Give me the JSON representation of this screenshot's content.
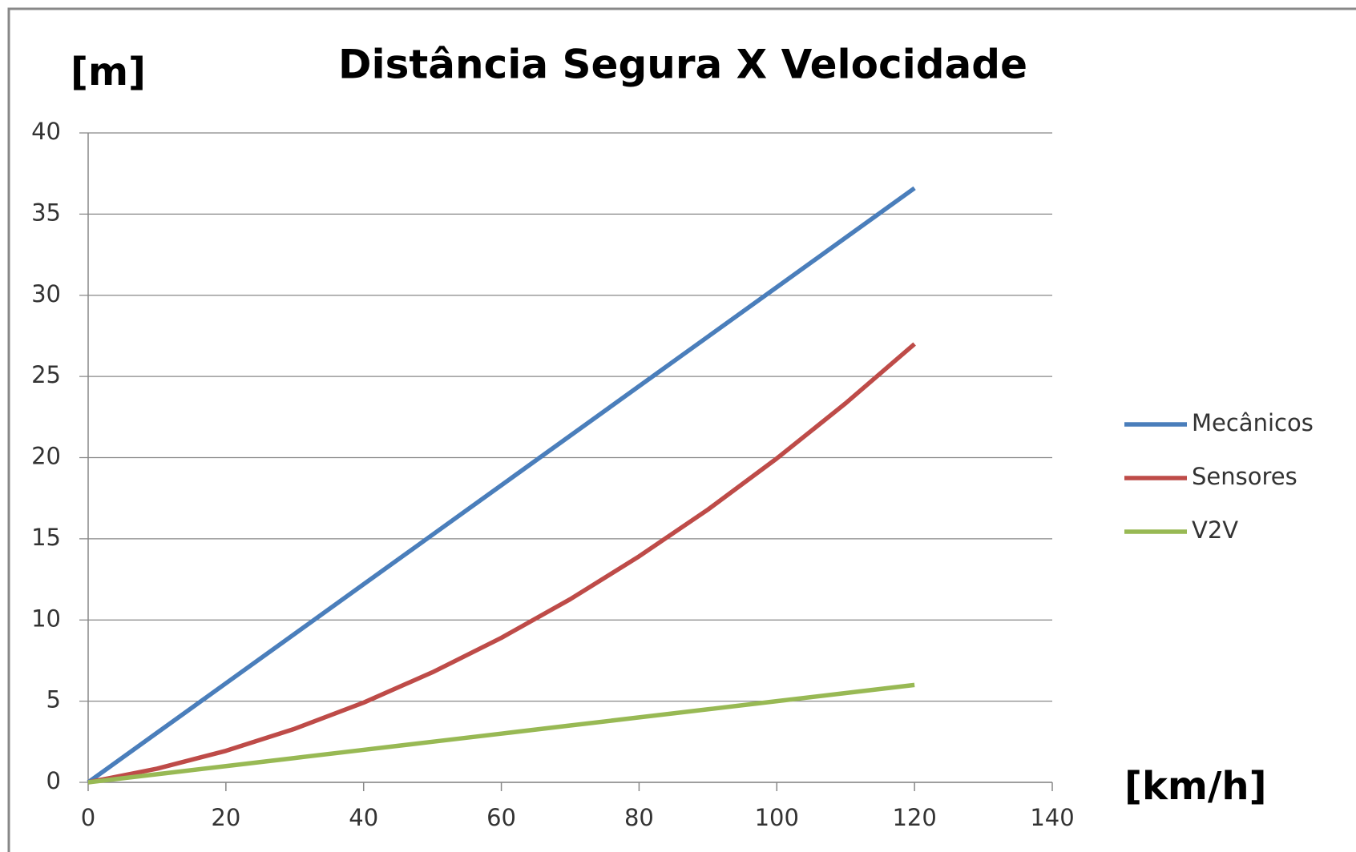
{
  "chart_data": {
    "type": "line",
    "title": "Distância Segura X Velocidade",
    "y_label": "[m]",
    "x_label": "[km/h]",
    "x": [
      0,
      10,
      20,
      30,
      40,
      50,
      60,
      70,
      80,
      90,
      100,
      110,
      120
    ],
    "series": [
      {
        "name": "Mecânicos",
        "color": "#4a7ebb",
        "values": [
          0,
          3.05,
          6.1,
          9.15,
          12.2,
          15.25,
          18.3,
          21.35,
          24.4,
          27.45,
          30.5,
          33.55,
          36.6
        ]
      },
      {
        "name": "Sensores",
        "color": "#be4b48",
        "values": [
          0,
          0.84,
          1.94,
          3.3,
          4.91,
          6.78,
          8.9,
          11.28,
          13.92,
          16.8,
          19.95,
          23.35,
          27.0
        ]
      },
      {
        "name": "V2V",
        "color": "#98b954",
        "values": [
          0,
          0.5,
          1,
          1.5,
          2,
          2.5,
          3,
          3.5,
          4,
          4.5,
          5,
          5.5,
          6
        ]
      }
    ],
    "xlim": [
      0,
      140
    ],
    "xticks": [
      0,
      20,
      40,
      60,
      80,
      100,
      120,
      140
    ],
    "ylim": [
      0,
      40
    ],
    "yticks": [
      0,
      5,
      10,
      15,
      20,
      25,
      30,
      35,
      40
    ],
    "grid": true,
    "legend": "right"
  }
}
